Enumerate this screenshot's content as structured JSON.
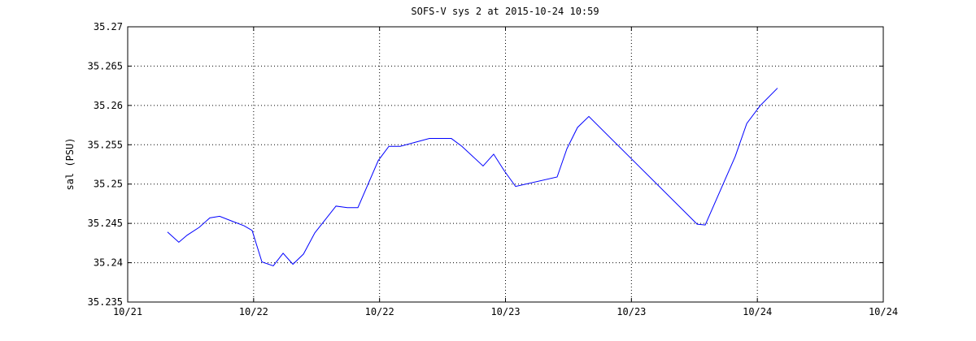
{
  "chart_data": {
    "type": "line",
    "title": "SOFS-V sys 2 at 2015-10-24 10:59",
    "y_label": "sal (PSU)",
    "x": [
      21.158,
      21.203,
      21.236,
      21.284,
      21.326,
      21.365,
      21.413,
      21.462,
      21.494,
      21.533,
      21.578,
      21.617,
      21.656,
      21.698,
      21.743,
      21.827,
      21.872,
      21.914,
      21.995,
      22.037,
      22.082,
      22.14,
      22.198,
      22.285,
      22.327,
      22.411,
      22.453,
      22.495,
      22.54,
      22.705,
      22.744,
      22.786,
      22.831,
      23.261,
      23.293,
      23.412,
      23.458,
      23.512,
      23.58
    ],
    "series": [
      {
        "name": "sal",
        "color": "#0000ff",
        "values": [
          35.2439,
          35.2426,
          35.2435,
          35.2445,
          35.2457,
          35.2459,
          35.2453,
          35.2447,
          35.2441,
          35.2401,
          35.2396,
          35.2412,
          35.2398,
          35.2411,
          35.2438,
          35.2472,
          35.247,
          35.247,
          35.253,
          35.2548,
          35.2548,
          35.2553,
          35.2558,
          35.2558,
          35.2548,
          35.2523,
          35.2538,
          35.2517,
          35.2497,
          35.2509,
          35.2545,
          35.2572,
          35.2586,
          35.2449,
          35.2448,
          35.2535,
          35.2577,
          35.26,
          35.2622
        ]
      }
    ],
    "xlim": [
      21,
      24
    ],
    "xticks": [
      {
        "value": 21,
        "label": "10/21"
      },
      {
        "value": 21.5,
        "label": "10/22"
      },
      {
        "value": 22,
        "label": "10/22"
      },
      {
        "value": 22.5,
        "label": "10/23"
      },
      {
        "value": 23,
        "label": "10/23"
      },
      {
        "value": 23.5,
        "label": "10/24"
      },
      {
        "value": 24,
        "label": "10/24"
      }
    ],
    "ylim": [
      35.235,
      35.27
    ],
    "yticks": [
      35.235,
      35.24,
      35.245,
      35.25,
      35.255,
      35.26,
      35.265,
      35.27
    ],
    "grid": true
  }
}
